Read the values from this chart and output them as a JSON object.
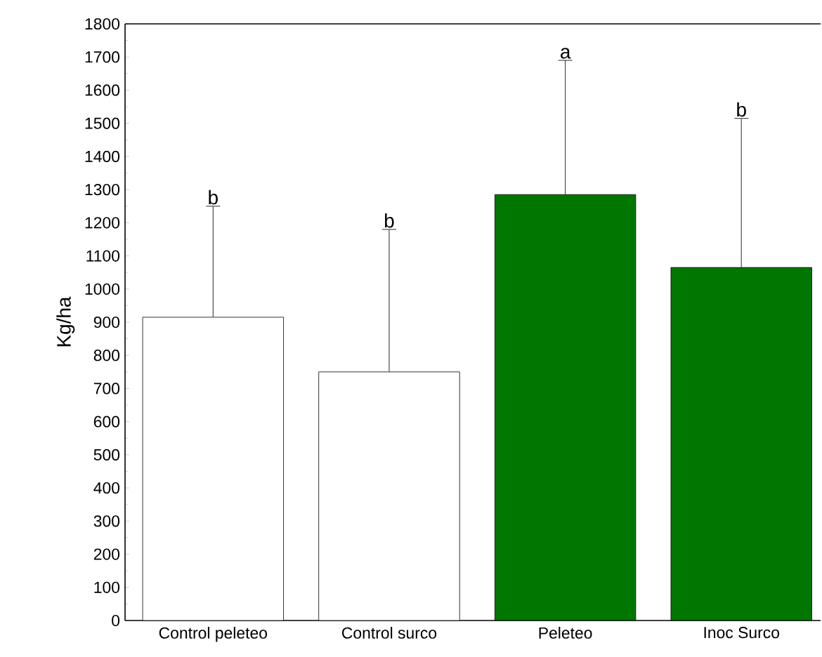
{
  "chart_data": {
    "type": "bar",
    "ylabel": "Kg/ha",
    "categories": [
      "Control peleteo",
      "Control surco",
      "Peleteo",
      "Inoc Surco"
    ],
    "values": [
      915,
      750,
      1285,
      1065
    ],
    "colors": [
      "#ffffff",
      "#ffffff",
      "#007700",
      "#007700"
    ],
    "errors": [
      [
        915,
        1250
      ],
      [
        750,
        1180
      ],
      [
        1285,
        1690
      ],
      [
        1065,
        1515
      ]
    ],
    "ylim": [
      0,
      1800
    ],
    "yticks": [
      0,
      100,
      200,
      300,
      400,
      500,
      600,
      700,
      800,
      900,
      1000,
      1100,
      1200,
      1300,
      1400,
      1500,
      1600,
      1700,
      1800
    ],
    "annotations": [
      {
        "text": "b",
        "x": "Control peleteo",
        "y": 1250
      },
      {
        "text": "b",
        "x": "Control surco",
        "y": 1180
      },
      {
        "text": "a",
        "x": "Peleteo",
        "y": 1690
      },
      {
        "text": "b",
        "x": "Inoc Surco",
        "y": 1515
      }
    ]
  }
}
